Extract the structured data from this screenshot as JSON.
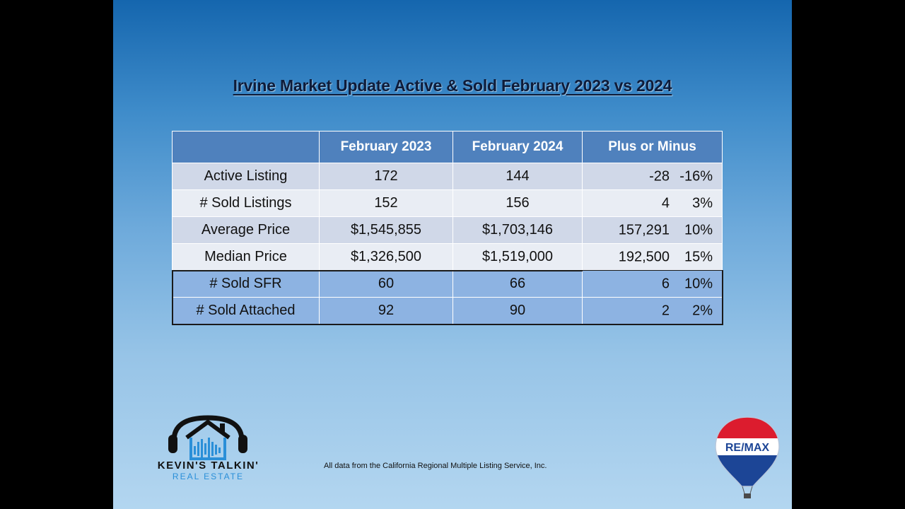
{
  "title": "Irvine Market Update Active & Sold February 2023 vs 2024",
  "table": {
    "headers": [
      "",
      "February 2023",
      "February 2024",
      "Plus or Minus"
    ],
    "rows": [
      {
        "label": "Active Listing",
        "feb2023": "172",
        "feb2024": "144",
        "diff": "-28",
        "pct": "-16%",
        "trend": "negative"
      },
      {
        "label": "# Sold Listings",
        "feb2023": "152",
        "feb2024": "156",
        "diff": "4",
        "pct": "3%",
        "trend": "positive"
      },
      {
        "label": "Average Price",
        "feb2023": "$1,545,855",
        "feb2024": "$1,703,146",
        "diff": "157,291",
        "pct": "10%",
        "trend": "positive"
      },
      {
        "label": "Median Price",
        "feb2023": "$1,326,500",
        "feb2024": "$1,519,000",
        "diff": "192,500",
        "pct": "15%",
        "trend": "positive"
      },
      {
        "label": "# Sold SFR",
        "feb2023": "60",
        "feb2024": "66",
        "diff": "6",
        "pct": "10%",
        "trend": "positive"
      },
      {
        "label": "# Sold Attached",
        "feb2023": "92",
        "feb2024": "90",
        "diff": "2",
        "pct": "2%",
        "trend": "negative"
      }
    ]
  },
  "logo": {
    "name": "KEVIN'S TALKIN'",
    "sub": "REAL ESTATE",
    "icon": "house-headphones-icon"
  },
  "brand": {
    "name": "RE/MAX",
    "icon": "hot-air-balloon-icon"
  },
  "source_note": "All data from the California Regional Multiple Listing Service, Inc.",
  "colors": {
    "header": "#4f81bd",
    "negative": "#e8141e",
    "positive": "#1aa046"
  }
}
